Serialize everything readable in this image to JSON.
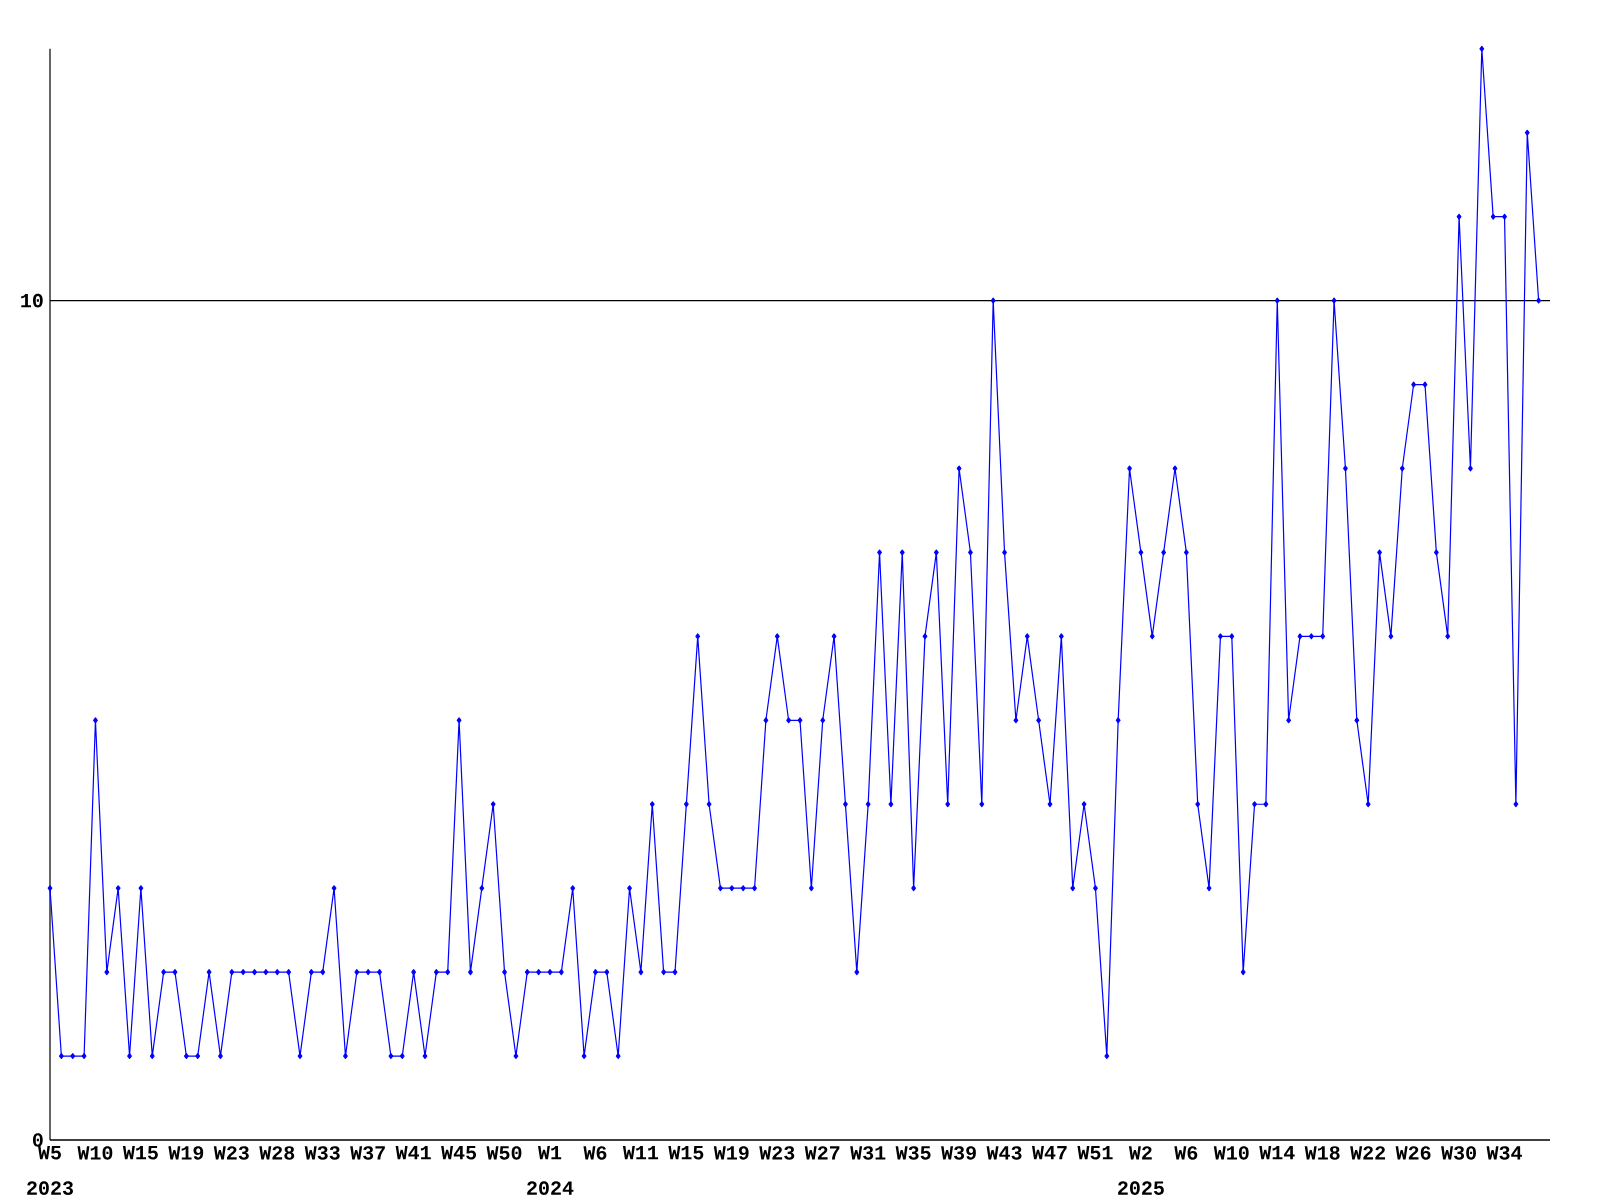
{
  "chart_data": {
    "type": "line",
    "categories": [
      "W5",
      null,
      null,
      null,
      "W10",
      null,
      null,
      null,
      "W15",
      null,
      null,
      null,
      "W19",
      null,
      null,
      null,
      "W23",
      null,
      null,
      null,
      "W28",
      null,
      null,
      null,
      "W33",
      null,
      null,
      null,
      "W37",
      null,
      null,
      null,
      "W41",
      null,
      null,
      null,
      "W45",
      null,
      null,
      null,
      "W50",
      null,
      null,
      null,
      "W1",
      null,
      null,
      null,
      "W6",
      null,
      null,
      null,
      "W11",
      null,
      null,
      null,
      "W15",
      null,
      null,
      null,
      "W19",
      null,
      null,
      null,
      "W23",
      null,
      null,
      null,
      "W27",
      null,
      null,
      null,
      "W31",
      null,
      null,
      null,
      "W35",
      null,
      null,
      null,
      "W39",
      null,
      null,
      null,
      "W43",
      null,
      null,
      null,
      "W47",
      null,
      null,
      null,
      "W51",
      null,
      null,
      null,
      "W2",
      null,
      null,
      null,
      "W6",
      null,
      null,
      null,
      "W10",
      null,
      null,
      null,
      "W14",
      null,
      null,
      null,
      "W18",
      null,
      null,
      null,
      "W22",
      null,
      null,
      null,
      "W26",
      null,
      null,
      null,
      "W30",
      null,
      null,
      null,
      "W34",
      null,
      null,
      null
    ],
    "values": [
      3,
      1,
      1,
      1,
      5,
      2,
      3,
      1,
      3,
      1,
      2,
      2,
      1,
      1,
      2,
      1,
      2,
      2,
      2,
      2,
      2,
      2,
      1,
      2,
      2,
      3,
      1,
      2,
      2,
      2,
      1,
      1,
      2,
      1,
      2,
      2,
      5,
      2,
      3,
      4,
      2,
      1,
      2,
      2,
      2,
      2,
      3,
      1,
      2,
      2,
      1,
      3,
      2,
      4,
      2,
      2,
      4,
      6,
      4,
      3,
      3,
      3,
      3,
      5,
      6,
      5,
      5,
      3,
      5,
      6,
      4,
      2,
      4,
      7,
      4,
      7,
      3,
      6,
      7,
      4,
      8,
      7,
      4,
      10,
      7,
      5,
      6,
      5,
      4,
      6,
      3,
      4,
      3,
      1,
      5,
      8,
      7,
      6,
      7,
      8,
      7,
      4,
      3,
      6,
      6,
      2,
      4,
      4,
      10,
      5,
      6,
      6,
      6,
      10,
      8,
      5,
      4,
      7,
      6,
      8,
      9,
      9,
      7,
      6,
      11,
      8,
      13,
      11,
      11,
      4,
      12,
      10
    ],
    "color": "#0000ff",
    "ylim": [
      0,
      13
    ],
    "yticks": [
      0,
      10
    ],
    "grid": "y",
    "marker": "diamond",
    "line_style": "solid",
    "annotations": [
      "2023",
      "2024",
      "2025"
    ]
  }
}
